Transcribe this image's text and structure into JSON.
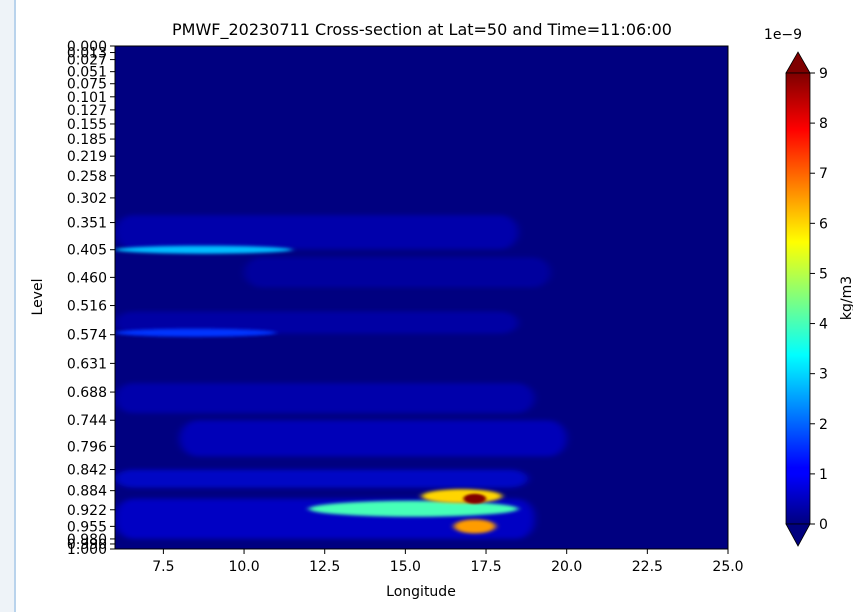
{
  "chart_data": {
    "type": "heatmap",
    "title": "PMWF_20230711 Cross-section at Lat=50 and Time=11:06:00",
    "xlabel": "Longitude",
    "ylabel": "Level",
    "xlim": [
      6.0,
      25.0
    ],
    "x_ticks": [
      7.5,
      10.0,
      12.5,
      15.0,
      17.5,
      20.0,
      22.5,
      25.0
    ],
    "x_tick_labels": [
      "7.5",
      "10.0",
      "12.5",
      "15.0",
      "17.5",
      "20.0",
      "22.5",
      "25.0"
    ],
    "y_levels": [
      0.0,
      0.013,
      0.027,
      0.051,
      0.075,
      0.101,
      0.127,
      0.155,
      0.185,
      0.219,
      0.258,
      0.302,
      0.351,
      0.405,
      0.46,
      0.516,
      0.574,
      0.631,
      0.688,
      0.744,
      0.796,
      0.842,
      0.884,
      0.922,
      0.955,
      0.98,
      0.99,
      1.0
    ],
    "y_tick_labels": [
      "0.000",
      "0.013",
      "0.027",
      "0.051",
      "0.075",
      "0.101",
      "0.127",
      "0.155",
      "0.185",
      "0.219",
      "0.258",
      "0.302",
      "0.351",
      "0.405",
      "0.460",
      "0.516",
      "0.574",
      "0.631",
      "0.688",
      "0.744",
      "0.796",
      "0.842",
      "0.884",
      "0.922",
      "0.955",
      "0.980",
      "0.990",
      "1.000"
    ],
    "y_inverted": true,
    "colormap": "jet",
    "colorbar": {
      "label": "kg/m3",
      "exponent_label": "1e−9",
      "vmin": 0,
      "vmax": 9,
      "ticks": [
        0,
        1,
        2,
        3,
        4,
        5,
        6,
        7,
        8,
        9
      ],
      "tick_labels": [
        "0",
        "1",
        "2",
        "3",
        "4",
        "5",
        "6",
        "7",
        "8",
        "9"
      ],
      "extend": "both",
      "under_color": "#00007f",
      "over_color": "#7f0000"
    },
    "features": [
      {
        "lon": [
          6.0,
          11.5
        ],
        "level": 0.405,
        "value_e9": 2.8
      },
      {
        "lon": [
          6.0,
          11.0
        ],
        "level": 0.57,
        "value_e9": 1.6
      },
      {
        "lon": [
          12.0,
          18.5
        ],
        "level": 0.92,
        "value_e9": 4.0
      },
      {
        "lon": [
          15.5,
          18.0
        ],
        "level": 0.895,
        "value_e9": 6.0
      },
      {
        "lon": [
          16.8,
          17.5
        ],
        "level": 0.9,
        "value_e9": 9.0
      },
      {
        "lon": [
          16.5,
          17.8
        ],
        "level": 0.955,
        "value_e9": 6.5
      }
    ]
  }
}
